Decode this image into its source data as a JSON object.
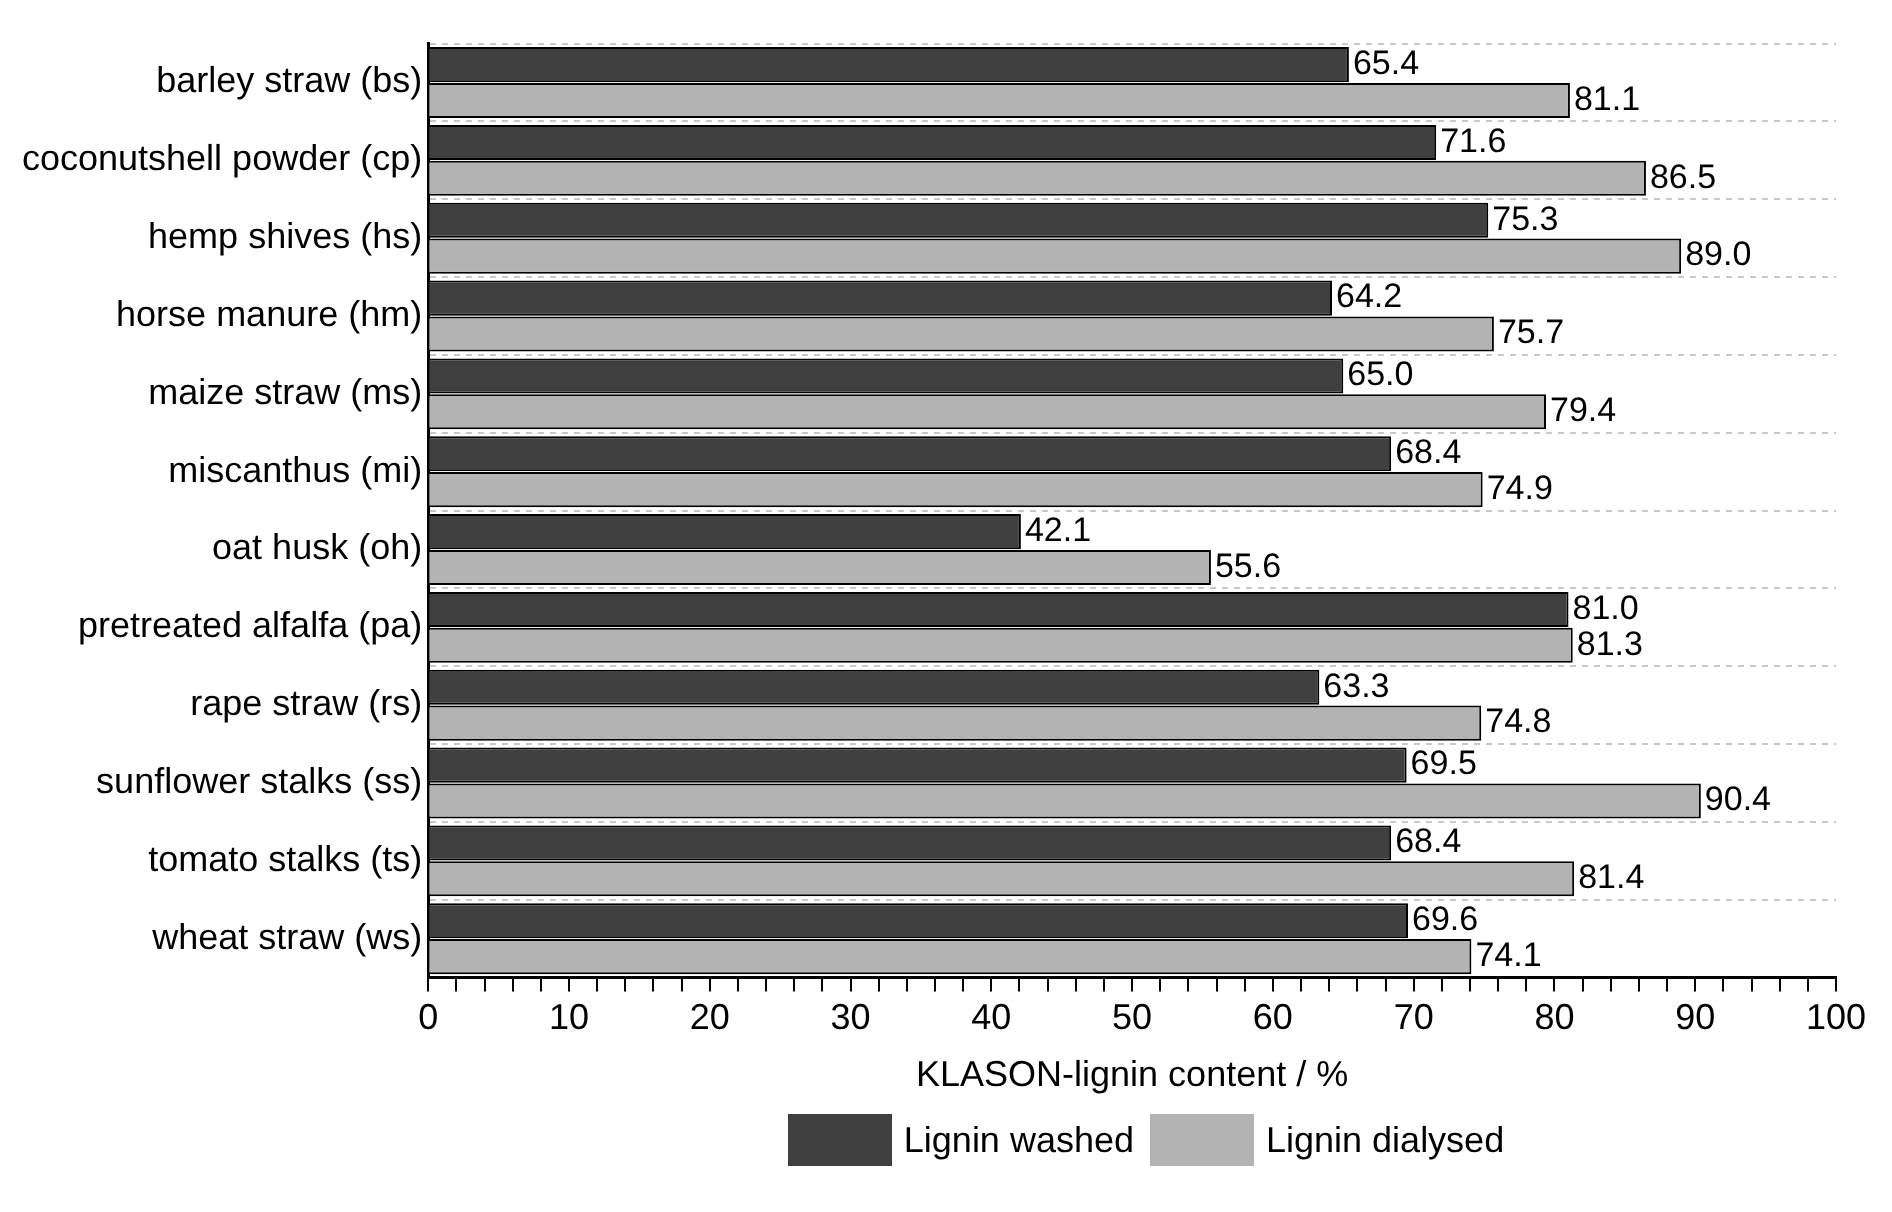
{
  "chart_data": {
    "type": "bar",
    "orientation": "horizontal",
    "xlabel": "KLASON-lignin content / %",
    "categories": [
      "barley straw (bs)",
      "coconutshell powder (cp)",
      "hemp shives (hs)",
      "horse manure (hm)",
      "maize straw (ms)",
      "miscanthus (mi)",
      "oat husk (oh)",
      "pretreated alfalfa (pa)",
      "rape straw (rs)",
      "sunflower stalks (ss)",
      "tomato stalks (ts)",
      "wheat straw (ws)"
    ],
    "series": [
      {
        "name": "Lignin washed",
        "color": "#404040",
        "values": [
          65.4,
          71.6,
          75.3,
          64.2,
          65.0,
          68.4,
          42.1,
          81.0,
          63.3,
          69.5,
          68.4,
          69.6
        ]
      },
      {
        "name": "Lignin dialysed",
        "color": "#b3b3b3",
        "values": [
          81.1,
          86.5,
          89.0,
          75.7,
          79.4,
          74.9,
          55.6,
          81.3,
          74.8,
          90.4,
          81.4,
          74.1
        ]
      }
    ],
    "value_labels": [
      [
        "65.4",
        "71.6",
        "75.3",
        "64.2",
        "65.0",
        "68.4",
        "42.1",
        "81.0",
        "63.3",
        "69.5",
        "68.4",
        "69.6"
      ],
      [
        "81.1",
        "86.5",
        "89.0",
        "75.7",
        "79.4",
        "74.9",
        "55.6",
        "81.3",
        "74.8",
        "90.4",
        "81.4",
        "74.1"
      ]
    ],
    "xlim": [
      0,
      100
    ],
    "xticks": [
      0,
      {
        "value": 2,
        "label": null
      },
      {
        "value": 4,
        "label": null
      },
      {
        "value": 6,
        "label": null
      },
      {
        "value": 8,
        "label": null
      },
      10,
      {
        "value": 12,
        "label": null
      },
      {
        "value": 14,
        "label": null
      },
      {
        "value": 16,
        "label": null
      },
      {
        "value": 18,
        "label": null
      },
      20,
      {
        "value": 22,
        "label": null
      },
      {
        "value": 24,
        "label": null
      },
      {
        "value": 26,
        "label": null
      },
      {
        "value": 28,
        "label": null
      },
      30,
      {
        "value": 32,
        "label": null
      },
      {
        "value": 34,
        "label": null
      },
      {
        "value": 36,
        "label": null
      },
      {
        "value": 38,
        "label": null
      },
      40,
      {
        "value": 42,
        "label": null
      },
      {
        "value": 44,
        "label": null
      },
      {
        "value": 46,
        "label": null
      },
      {
        "value": 48,
        "label": null
      },
      50,
      {
        "value": 52,
        "label": null
      },
      {
        "value": 54,
        "label": null
      },
      {
        "value": 56,
        "label": null
      },
      {
        "value": 58,
        "label": null
      },
      60,
      {
        "value": 62,
        "label": null
      },
      {
        "value": 64,
        "label": null
      },
      {
        "value": 66,
        "label": null
      },
      {
        "value": 68,
        "label": null
      },
      70,
      {
        "value": 72,
        "label": null
      },
      {
        "value": 74,
        "label": null
      },
      {
        "value": 76,
        "label": null
      },
      {
        "value": 78,
        "label": null
      },
      80,
      {
        "value": 82,
        "label": null
      },
      {
        "value": 84,
        "label": null
      },
      {
        "value": 86,
        "label": null
      },
      {
        "value": 88,
        "label": null
      },
      90,
      {
        "value": 92,
        "label": null
      },
      {
        "value": 94,
        "label": null
      },
      {
        "value": 96,
        "label": null
      },
      {
        "value": 98,
        "label": null
      },
      100
    ],
    "grid": "y",
    "legend": "bottom"
  }
}
